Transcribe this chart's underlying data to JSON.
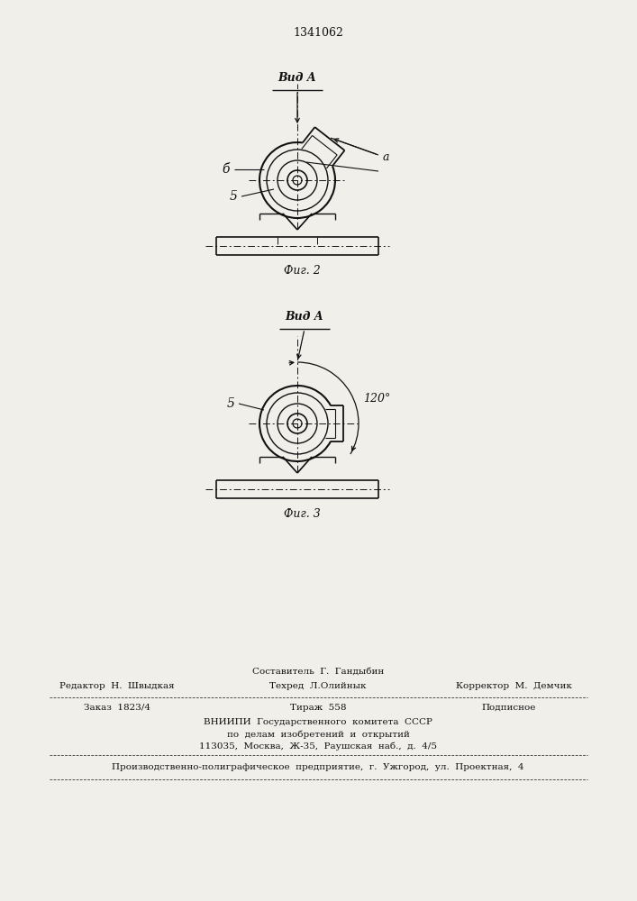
{
  "patent_number": "1341062",
  "fig2_label": "Фиг. 2",
  "fig3_label": "Фиг. 3",
  "vid_a_label": "Вид A",
  "label_a": "a",
  "label_b": "б",
  "label_5_fig2": "5",
  "label_5_fig3": "5",
  "label_120": "120°",
  "footer_comp": "Составитель  Г.  Гандыбин",
  "footer_editor": "Редактор  Н.  Швыдкая",
  "footer_tech": "Техред  Л.Олийнык",
  "footer_corr": "Корректор  М.  Демчик",
  "footer_order": "Заказ  1823/4",
  "footer_tiraz": "Тираж  558",
  "footer_podp": "Подписное",
  "footer_vnipi": "ВНИИПИ  Государственного  комитета  СССР",
  "footer_dela": "по  делам  изобретений  и  открытий",
  "footer_addr": "113035,  Москва,  Ж-35,  Раушская  наб.,  д.  4/5",
  "footer_prod": "Производственно-полиграфическое  предприятие,  г.  Ужгород,  ул.  Проектная,  4",
  "bg_color": "#f0efea",
  "line_color": "#111111",
  "text_color": "#111111"
}
